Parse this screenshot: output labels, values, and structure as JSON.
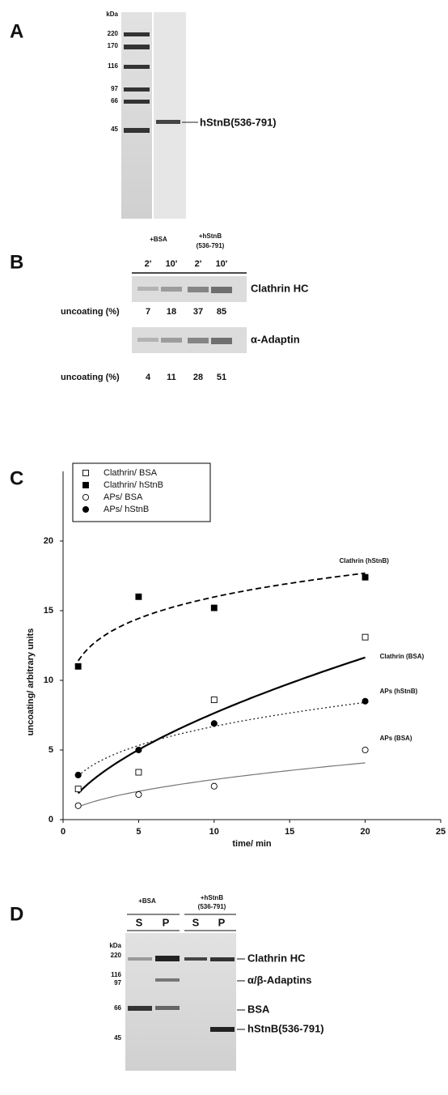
{
  "panel_a": {
    "label": "A",
    "ladder": [
      "kDa",
      "220",
      "170",
      "116",
      "97",
      "66",
      "45"
    ],
    "band_label": "hStnB(536-791)"
  },
  "panel_b": {
    "label": "B",
    "conditions": [
      "+BSA",
      "+hStnB",
      "(536-791)"
    ],
    "times": [
      "2'",
      "10'",
      "2'",
      "10'"
    ],
    "blots": [
      {
        "name": "Clathrin HC",
        "row_label": "uncoating (%)",
        "values": [
          7,
          18,
          37,
          85
        ]
      },
      {
        "name": "α-Adaptin",
        "row_label": "uncoating (%)",
        "values": [
          4,
          11,
          28,
          51
        ]
      }
    ]
  },
  "panel_c": {
    "label": "C"
  },
  "chart_data": {
    "type": "scatter",
    "x_label": "time/ min",
    "y_label": "uncoating/ arbitrary units",
    "x": [
      1,
      5,
      10,
      20
    ],
    "series": [
      {
        "name": "Clathrin/ BSA",
        "marker": "square-open",
        "line_style": "solid-thick",
        "curve_label": "Clathrin  (BSA)",
        "values": [
          2.2,
          3.4,
          8.6,
          13.1
        ]
      },
      {
        "name": "Clathrin/ hStnB",
        "marker": "square-filled",
        "line_style": "dashed",
        "curve_label": "Clathrin  (hStnB)",
        "values": [
          11,
          16,
          15.2,
          17.4
        ]
      },
      {
        "name": "APs/ BSA",
        "marker": "circle-open",
        "line_style": "thin-gray",
        "curve_label": "APs  (BSA)",
        "values": [
          1,
          1.8,
          2.4,
          5
        ]
      },
      {
        "name": "APs/ hStnB",
        "marker": "circle-filled",
        "line_style": "dotted",
        "curve_label": "APs  (hStnB)",
        "values": [
          3.2,
          5,
          6.9,
          8.5
        ]
      }
    ],
    "xlim": [
      0,
      25
    ],
    "xticks": [
      0,
      5,
      10,
      15,
      20,
      25
    ],
    "ylim": [
      0,
      25
    ],
    "yticks": [
      0,
      5,
      10,
      15,
      20
    ],
    "legend": "top-left"
  },
  "panel_d": {
    "label": "D",
    "conditions": [
      "+BSA",
      "+hStnB",
      "(536-791)"
    ],
    "lanes": [
      "S",
      "P",
      "S",
      "P"
    ],
    "ladder": [
      "kDa",
      "220",
      "116",
      "97",
      "66",
      "45"
    ],
    "bands": [
      "Clathrin HC",
      "α/β-Adaptins",
      "BSA",
      "hStnB(536-791)"
    ]
  }
}
